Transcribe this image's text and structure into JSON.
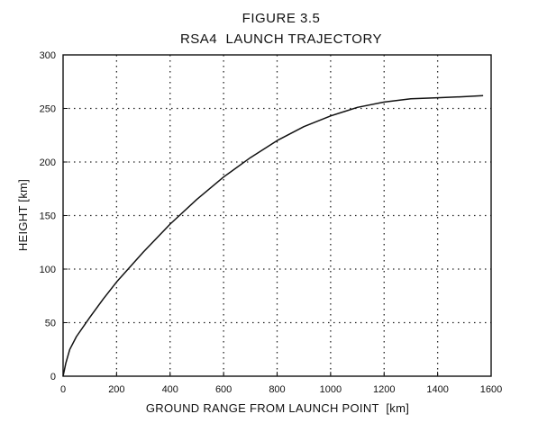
{
  "chart_data": {
    "type": "line",
    "figure_label": "FIGURE 3.5",
    "title": "RSA4  LAUNCH TRAJECTORY",
    "xlabel": "GROUND RANGE FROM LAUNCH POINT  [km]",
    "ylabel": "HEIGHT [km]",
    "xlim": [
      0,
      1600
    ],
    "ylim": [
      0,
      300
    ],
    "xticks": [
      0,
      200,
      400,
      600,
      800,
      1000,
      1200,
      1400,
      1600
    ],
    "xtick_labels": [
      "0",
      "200",
      "400",
      "600",
      "800",
      "1000",
      "1200",
      "1400",
      "1600"
    ],
    "yticks": [
      0,
      50,
      100,
      150,
      200,
      250,
      300
    ],
    "ytick_labels": [
      "0",
      "50",
      "100",
      "150",
      "200",
      "250",
      "300"
    ],
    "grid": true,
    "series": [
      {
        "x": [
          0,
          10,
          25,
          50,
          100,
          150,
          200,
          300,
          400,
          500,
          600,
          700,
          800,
          900,
          1000,
          1100,
          1200,
          1300,
          1400,
          1500,
          1570
        ],
        "y": [
          0,
          12,
          25,
          37,
          55,
          72,
          88,
          116,
          142,
          165,
          186,
          204,
          220,
          233,
          243,
          251,
          256,
          259,
          260,
          261,
          262
        ]
      }
    ]
  }
}
